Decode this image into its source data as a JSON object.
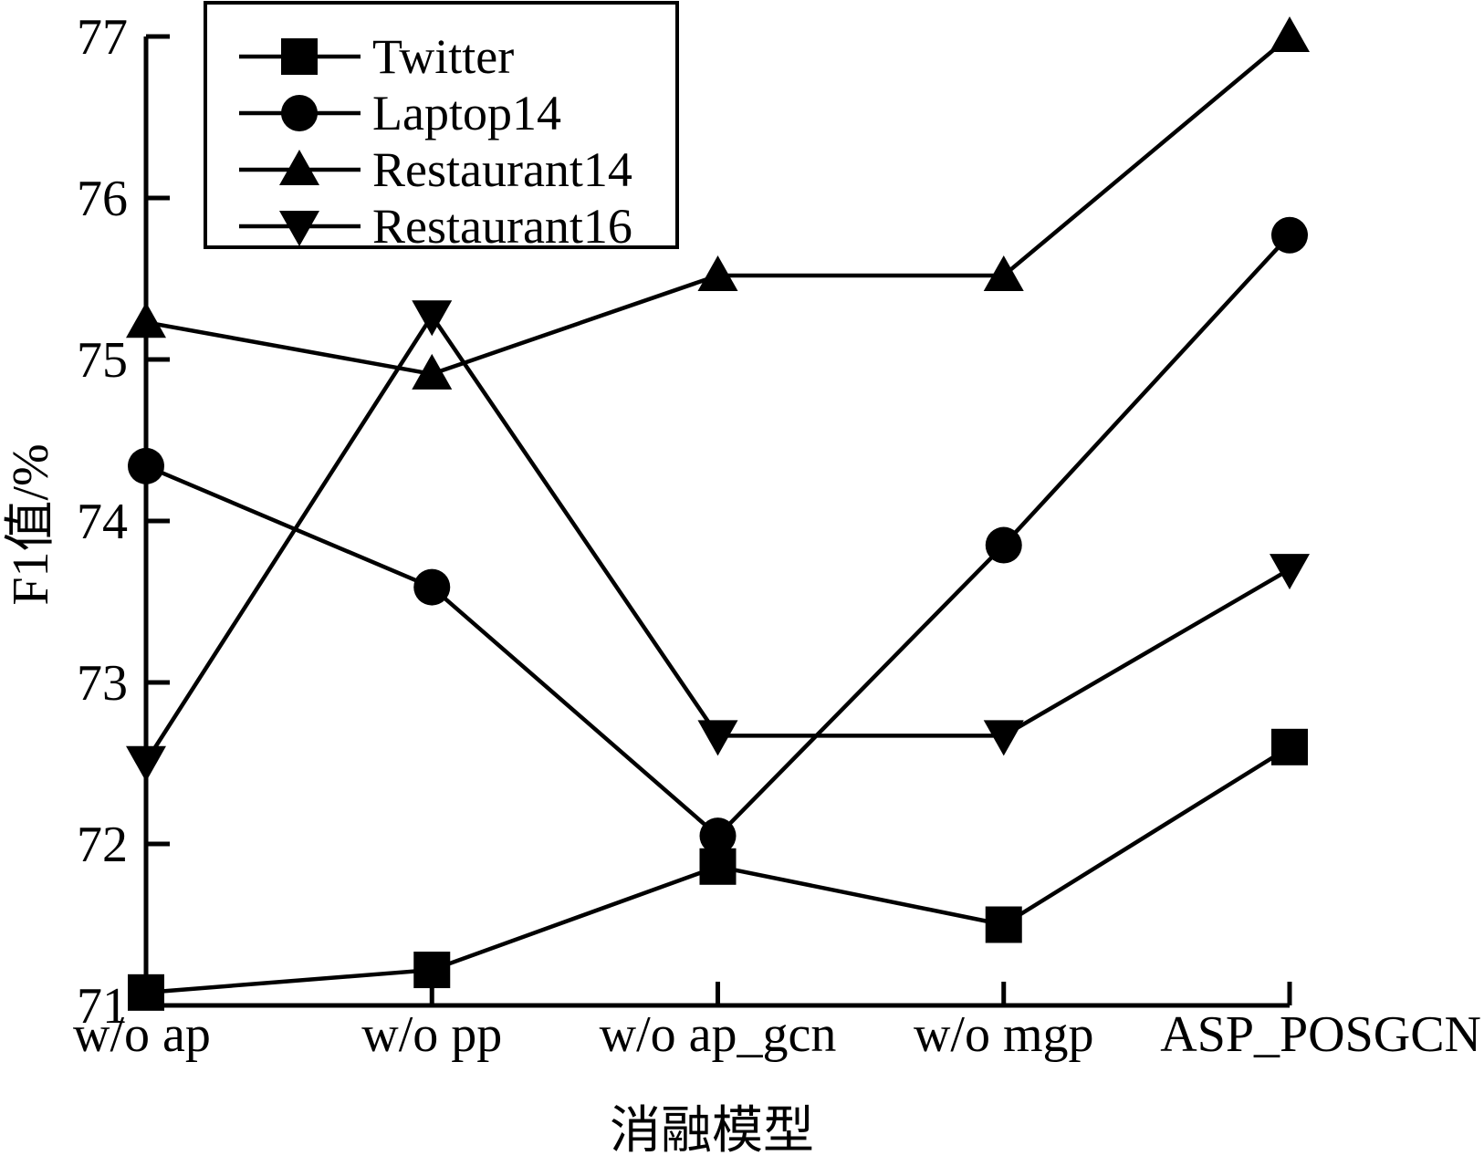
{
  "chart_data": {
    "type": "line",
    "title": "",
    "xlabel": "消融模型",
    "ylabel": "F1值/%",
    "categories": [
      "w/o ap",
      "w/o pp",
      "w/o ap_gcn",
      "w/o mgp",
      "ASP_POSGCN"
    ],
    "ylim": [
      71,
      77
    ],
    "yticks": [
      "71",
      "72",
      "73",
      "74",
      "75",
      "76",
      "77"
    ],
    "grid": false,
    "legend_position": "top-left",
    "series": [
      {
        "name": "Twitter",
        "marker": "square",
        "values": [
          71.08,
          71.22,
          71.86,
          71.5,
          72.6
        ]
      },
      {
        "name": "Laptop14",
        "marker": "circle",
        "values": [
          74.34,
          73.59,
          72.05,
          73.85,
          75.77
        ]
      },
      {
        "name": "Restaurant14",
        "marker": "triangle-up",
        "values": [
          75.23,
          74.91,
          75.52,
          75.52,
          77.0
        ]
      },
      {
        "name": "Restaurant16",
        "marker": "triangle-down",
        "values": [
          72.51,
          75.27,
          72.67,
          72.67,
          73.7
        ]
      }
    ],
    "colors": {
      "line": "#000000",
      "background": "#ffffff"
    }
  }
}
